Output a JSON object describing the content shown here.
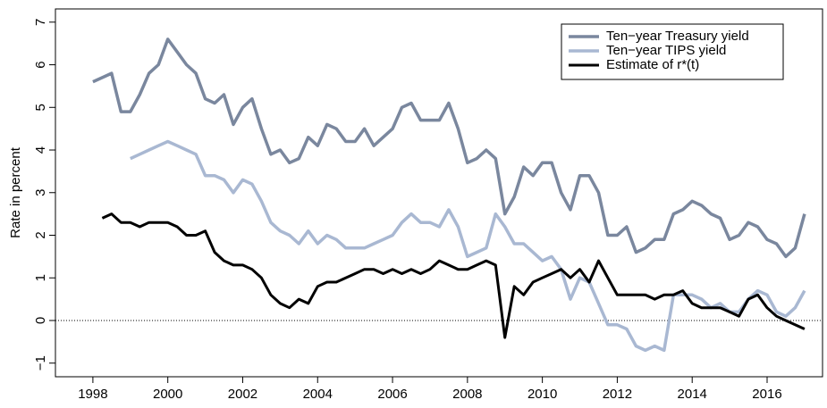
{
  "chart_data": {
    "type": "line",
    "y_label": "Rate in percent",
    "x": [
      1998,
      1998.25,
      1998.5,
      1998.75,
      1999,
      1999.25,
      1999.5,
      1999.75,
      2000,
      2000.25,
      2000.5,
      2000.75,
      2001,
      2001.25,
      2001.5,
      2001.75,
      2002,
      2002.25,
      2002.5,
      2002.75,
      2003,
      2003.25,
      2003.5,
      2003.75,
      2004,
      2004.25,
      2004.5,
      2004.75,
      2005,
      2005.25,
      2005.5,
      2005.75,
      2006,
      2006.25,
      2006.5,
      2006.75,
      2007,
      2007.25,
      2007.5,
      2007.75,
      2008,
      2008.25,
      2008.5,
      2008.75,
      2009,
      2009.25,
      2009.5,
      2009.75,
      2010,
      2010.25,
      2010.5,
      2010.75,
      2011,
      2011.25,
      2011.5,
      2011.75,
      2012,
      2012.25,
      2012.5,
      2012.75,
      2013,
      2013.25,
      2013.5,
      2013.75,
      2014,
      2014.25,
      2014.5,
      2014.75,
      2015,
      2015.25,
      2015.5,
      2015.75,
      2016,
      2016.25,
      2016.5,
      2016.75,
      2017
    ],
    "series": [
      {
        "name": "Ten−year Treasury yield",
        "color": "#7a879e",
        "width": 3.5,
        "values": [
          5.6,
          5.7,
          5.8,
          4.9,
          4.9,
          5.3,
          5.8,
          6.0,
          6.6,
          6.3,
          6.0,
          5.8,
          5.2,
          5.1,
          5.3,
          4.6,
          5.0,
          5.2,
          4.5,
          3.9,
          4.0,
          3.7,
          3.8,
          4.3,
          4.1,
          4.6,
          4.5,
          4.2,
          4.2,
          4.5,
          4.1,
          4.3,
          4.5,
          5.0,
          5.1,
          4.7,
          4.7,
          4.7,
          5.1,
          4.5,
          3.7,
          3.8,
          4.0,
          3.8,
          2.5,
          2.9,
          3.6,
          3.4,
          3.7,
          3.7,
          3.0,
          2.6,
          3.4,
          3.4,
          3.0,
          2.0,
          2.0,
          2.2,
          1.6,
          1.7,
          1.9,
          1.9,
          2.5,
          2.6,
          2.8,
          2.7,
          2.5,
          2.4,
          1.9,
          2.0,
          2.3,
          2.2,
          1.9,
          1.8,
          1.5,
          1.7,
          2.5
        ]
      },
      {
        "name": "Ten−year TIPS yield",
        "color": "#a9b8d2",
        "width": 3.5,
        "values": [
          null,
          null,
          null,
          null,
          3.8,
          3.9,
          4.0,
          4.1,
          4.2,
          4.1,
          4.0,
          3.9,
          3.4,
          3.4,
          3.3,
          3.0,
          3.3,
          3.2,
          2.8,
          2.3,
          2.1,
          2.0,
          1.8,
          2.1,
          1.8,
          2.0,
          1.9,
          1.7,
          1.7,
          1.7,
          1.8,
          1.9,
          2.0,
          2.3,
          2.5,
          2.3,
          2.3,
          2.2,
          2.6,
          2.2,
          1.5,
          1.6,
          1.7,
          2.5,
          2.2,
          1.8,
          1.8,
          1.6,
          1.4,
          1.5,
          1.2,
          0.5,
          1.0,
          0.9,
          0.4,
          -0.1,
          -0.1,
          -0.2,
          -0.6,
          -0.7,
          -0.6,
          -0.7,
          0.6,
          0.6,
          0.6,
          0.5,
          0.3,
          0.4,
          0.2,
          0.2,
          0.5,
          0.7,
          0.6,
          0.2,
          0.1,
          0.3,
          0.7
        ]
      },
      {
        "name": "Estimate of r*(t)",
        "color": "#000000",
        "width": 3,
        "values": [
          null,
          2.4,
          2.5,
          2.3,
          2.3,
          2.2,
          2.3,
          2.3,
          2.3,
          2.2,
          2.0,
          2.0,
          2.1,
          1.6,
          1.4,
          1.3,
          1.3,
          1.2,
          1.0,
          0.6,
          0.4,
          0.3,
          0.5,
          0.4,
          0.8,
          0.9,
          0.9,
          1.0,
          1.1,
          1.2,
          1.2,
          1.1,
          1.2,
          1.1,
          1.2,
          1.1,
          1.2,
          1.4,
          1.3,
          1.2,
          1.2,
          1.3,
          1.4,
          1.3,
          -0.4,
          0.8,
          0.6,
          0.9,
          1.0,
          1.1,
          1.2,
          1.0,
          1.2,
          0.9,
          1.4,
          1.0,
          0.6,
          0.6,
          0.6,
          0.6,
          0.5,
          0.6,
          0.6,
          0.7,
          0.4,
          0.3,
          0.3,
          0.3,
          0.2,
          0.1,
          0.5,
          0.6,
          0.3,
          0.1,
          0.0,
          -0.1,
          -0.2
        ]
      }
    ],
    "reference_line": 0,
    "xlim": [
      1997,
      2017.48
    ],
    "ylim": [
      -1.32,
      7.31
    ],
    "xticks": [
      1998,
      2000,
      2002,
      2004,
      2006,
      2008,
      2010,
      2012,
      2014,
      2016
    ],
    "yticks": [
      {
        "value": -1,
        "label": "−1"
      },
      0,
      1,
      2,
      3,
      4,
      5,
      6,
      7
    ],
    "legend": "top-right"
  }
}
